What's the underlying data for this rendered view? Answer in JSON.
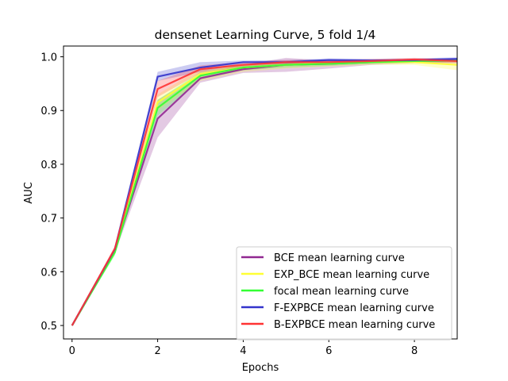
{
  "chart_data": {
    "type": "line",
    "title": "densenet Learning Curve, 5 fold 1/4",
    "xlabel": "Epochs",
    "ylabel": "AUC",
    "xlim": [
      -0.2,
      9
    ],
    "ylim": [
      0.475,
      1.02
    ],
    "xticks": [
      0,
      2,
      4,
      6,
      8
    ],
    "yticks": [
      0.5,
      0.6,
      0.7,
      0.8,
      0.9,
      1.0
    ],
    "xtick_labels": [
      "0",
      "2",
      "4",
      "6",
      "8"
    ],
    "ytick_labels": [
      "0.5",
      "0.6",
      "0.7",
      "0.8",
      "0.9",
      "1.0"
    ],
    "x": [
      0,
      1,
      2,
      3,
      4,
      5,
      6,
      7,
      8,
      9
    ],
    "legend_position": "lower-right",
    "series": [
      {
        "name": "BCE mean learning curve",
        "color": "#912891",
        "values": [
          0.5,
          0.64,
          0.885,
          0.96,
          0.977,
          0.985,
          0.987,
          0.99,
          0.992,
          0.993
        ],
        "lower": [
          0.5,
          0.635,
          0.85,
          0.952,
          0.97,
          0.972,
          0.978,
          0.985,
          0.988,
          0.988
        ],
        "upper": [
          0.5,
          0.645,
          0.92,
          0.968,
          0.985,
          0.998,
          0.993,
          0.994,
          0.995,
          0.997
        ]
      },
      {
        "name": "EXP_BCE mean learning curve",
        "color": "#ffff33",
        "values": [
          0.5,
          0.638,
          0.915,
          0.968,
          0.98,
          0.985,
          0.988,
          0.99,
          0.99,
          0.985
        ],
        "lower": [
          0.5,
          0.632,
          0.9,
          0.955,
          0.972,
          0.978,
          0.982,
          0.985,
          0.985,
          0.975
        ],
        "upper": [
          0.5,
          0.644,
          0.93,
          0.978,
          0.986,
          0.99,
          0.993,
          0.994,
          0.994,
          0.992
        ]
      },
      {
        "name": "focal mean learning curve",
        "color": "#33ff33",
        "values": [
          0.5,
          0.636,
          0.905,
          0.965,
          0.98,
          0.985,
          0.987,
          0.99,
          0.992,
          0.993
        ],
        "lower": [
          0.5,
          0.63,
          0.89,
          0.958,
          0.975,
          0.98,
          0.983,
          0.987,
          0.989,
          0.99
        ],
        "upper": [
          0.5,
          0.642,
          0.92,
          0.972,
          0.985,
          0.99,
          0.991,
          0.993,
          0.995,
          0.996
        ]
      },
      {
        "name": "F-EXPBCE mean learning curve",
        "color": "#3333cc",
        "values": [
          0.5,
          0.642,
          0.963,
          0.98,
          0.99,
          0.99,
          0.994,
          0.993,
          0.994,
          0.996
        ],
        "lower": [
          0.5,
          0.638,
          0.955,
          0.972,
          0.986,
          0.987,
          0.991,
          0.99,
          0.991,
          0.993
        ],
        "upper": [
          0.5,
          0.646,
          0.972,
          0.99,
          0.993,
          0.994,
          0.997,
          0.996,
          0.997,
          0.999
        ]
      },
      {
        "name": "B-EXPBCE mean learning curve",
        "color": "#ff3333",
        "values": [
          0.5,
          0.643,
          0.94,
          0.977,
          0.985,
          0.99,
          0.99,
          0.992,
          0.995,
          0.992
        ],
        "lower": [
          0.5,
          0.638,
          0.925,
          0.97,
          0.98,
          0.986,
          0.986,
          0.988,
          0.991,
          0.988
        ],
        "upper": [
          0.5,
          0.648,
          0.955,
          0.984,
          0.99,
          0.994,
          0.994,
          0.996,
          0.998,
          0.996
        ]
      }
    ]
  }
}
